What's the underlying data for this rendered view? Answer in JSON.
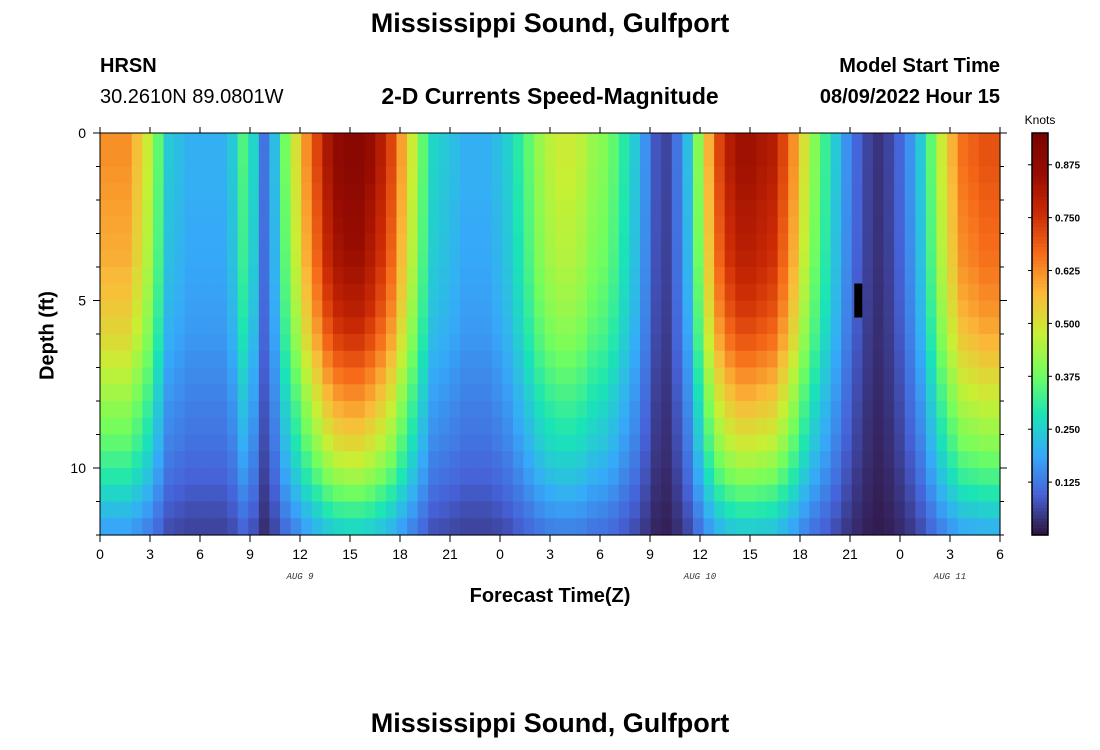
{
  "page": {
    "title": "Mississippi Sound, Gulfport",
    "station_id": "HRSN",
    "coordinates": "30.2610N  89.0801W",
    "subtitle": "2-D Currents Speed-Magnitude",
    "model_start_label": "Model Start Time",
    "model_start_value": "08/09/2022 Hour 15",
    "bottom_title": "Mississippi Sound, Gulfport"
  },
  "chart_data": {
    "type": "heatmap",
    "title": "2-D Currents Speed-Magnitude",
    "xlabel": "Forecast Time(Z)",
    "ylabel": "Depth (ft)",
    "x_ticks": [
      "0",
      "3",
      "6",
      "9",
      "12",
      "15",
      "18",
      "21",
      "0",
      "3",
      "6",
      "9",
      "12",
      "15",
      "18",
      "21",
      "0",
      "3",
      "6"
    ],
    "x_hours_range": [
      0,
      54
    ],
    "y_ticks": [
      "0",
      "5",
      "10"
    ],
    "y_range_ft": [
      0,
      12
    ],
    "date_labels": [
      {
        "label": "AUG 9",
        "hour": 12
      },
      {
        "label": "AUG 10",
        "hour": 36
      },
      {
        "label": "AUG 11",
        "hour": 51
      }
    ],
    "colorbar": {
      "title": "Knots",
      "ticks": [
        "0.875",
        "0.750",
        "0.625",
        "0.500",
        "0.375",
        "0.250",
        "0.125"
      ],
      "range": [
        0,
        0.95
      ]
    },
    "surface_speed_knots": [
      0.62,
      0.62,
      0.62,
      0.56,
      0.48,
      0.36,
      0.24,
      0.22,
      0.2,
      0.2,
      0.2,
      0.2,
      0.24,
      0.34,
      0.26,
      0.12,
      0.22,
      0.38,
      0.5,
      0.62,
      0.72,
      0.82,
      0.88,
      0.9,
      0.9,
      0.86,
      0.8,
      0.72,
      0.6,
      0.48,
      0.36,
      0.26,
      0.24,
      0.22,
      0.2,
      0.2,
      0.2,
      0.22,
      0.25,
      0.3,
      0.36,
      0.42,
      0.46,
      0.48,
      0.48,
      0.46,
      0.42,
      0.4,
      0.36,
      0.3,
      0.24,
      0.16,
      0.08,
      0.06,
      0.12,
      0.22,
      0.4,
      0.58,
      0.72,
      0.8,
      0.84,
      0.84,
      0.82,
      0.8,
      0.72,
      0.62,
      0.5,
      0.4,
      0.32,
      0.24,
      0.16,
      0.1,
      0.06,
      0.04,
      0.06,
      0.1,
      0.16,
      0.24,
      0.36,
      0.48,
      0.58,
      0.66,
      0.68,
      0.7,
      0.7
    ],
    "depth_attenuation": [
      1.0,
      1.0,
      0.99,
      0.98,
      0.97,
      0.96,
      0.95,
      0.94,
      0.92,
      0.9,
      0.88,
      0.85,
      0.82,
      0.78,
      0.74,
      0.7,
      0.66,
      0.62,
      0.58,
      0.53,
      0.48,
      0.42,
      0.36,
      0.3
    ],
    "masked_cell": {
      "hour": 45.5,
      "depth_ft": 5.0
    }
  }
}
